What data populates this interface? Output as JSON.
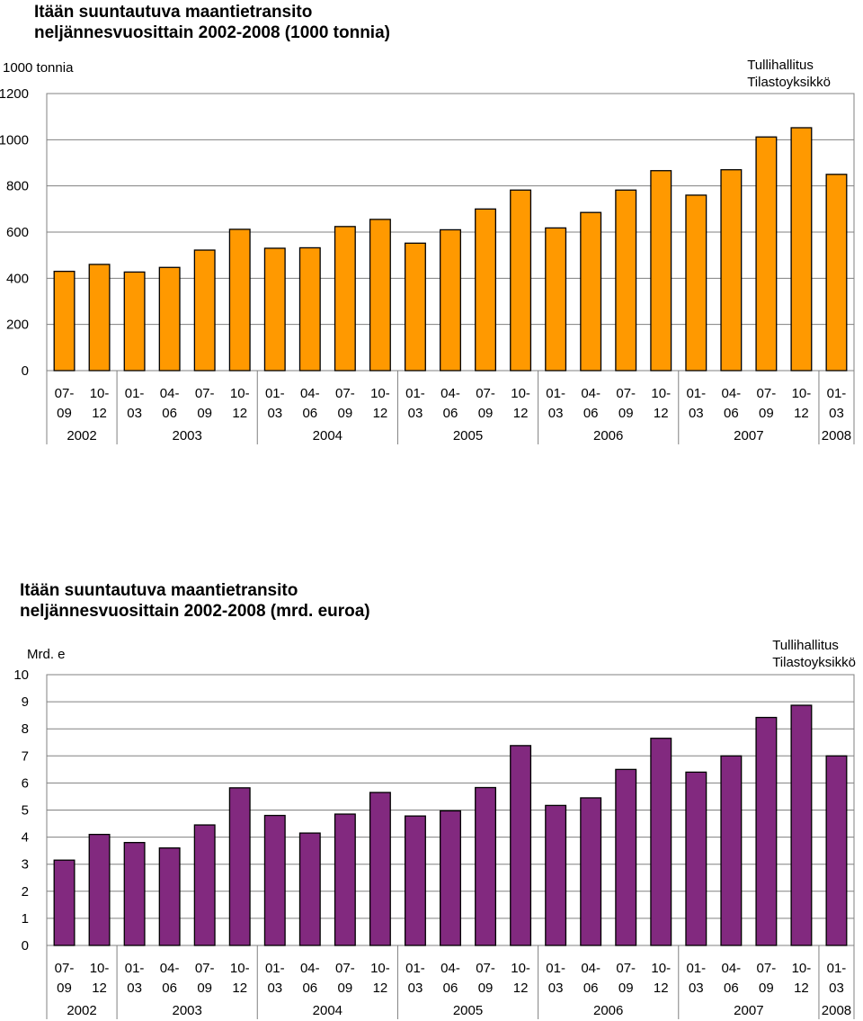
{
  "source": {
    "line1": "Tullihallitus",
    "line2": "Tilastoyksikkö"
  },
  "quarters": [
    "07-09",
    "10-12",
    "01-03",
    "04-06",
    "07-09",
    "10-12",
    "01-03",
    "04-06",
    "07-09",
    "10-12",
    "01-03",
    "04-06",
    "07-09",
    "10-12",
    "01-03",
    "04-06",
    "07-09",
    "10-12",
    "01-03",
    "04-06",
    "07-09",
    "10-12",
    "01-03"
  ],
  "years": [
    {
      "label": "2002",
      "first": 0,
      "last": 1
    },
    {
      "label": "2003",
      "first": 2,
      "last": 5
    },
    {
      "label": "2004",
      "first": 6,
      "last": 9
    },
    {
      "label": "2005",
      "first": 10,
      "last": 13
    },
    {
      "label": "2006",
      "first": 14,
      "last": 17
    },
    {
      "label": "2007",
      "first": 18,
      "last": 21
    },
    {
      "label": "2008",
      "first": 22,
      "last": 22
    }
  ],
  "chart_data": [
    {
      "type": "bar",
      "title_line1": "Itään suuntautuva maantietransito",
      "title_line2": "neljännesvuosittain 2002-2008 (1000 tonnia)",
      "ylabel": "1000 tonnia",
      "ylim": [
        0,
        1200
      ],
      "yticks": [
        "0",
        "200",
        "400",
        "600",
        "800",
        "1000",
        "1200"
      ],
      "values": [
        430,
        460,
        427,
        447,
        522,
        612,
        530,
        532,
        624,
        655,
        552,
        610,
        700,
        782,
        618,
        685,
        782,
        866,
        760,
        870,
        1012,
        1052,
        850
      ],
      "color": "#FF9900"
    },
    {
      "type": "bar",
      "title_line1": "Itään suuntautuva maantietransito",
      "title_line2": "neljännesvuosittain 2002-2008 (mrd. euroa)",
      "ylabel": "Mrd. e",
      "ylim": [
        0,
        10
      ],
      "yticks": [
        "0",
        "1",
        "2",
        "3",
        "4",
        "5",
        "6",
        "7",
        "8",
        "9",
        "10"
      ],
      "values": [
        3.15,
        4.1,
        3.8,
        3.6,
        4.45,
        5.82,
        4.8,
        4.15,
        4.85,
        5.65,
        4.78,
        4.97,
        5.83,
        7.38,
        5.17,
        5.45,
        6.5,
        7.65,
        6.4,
        7.0,
        8.42,
        8.87,
        7.0
      ],
      "color": "#82297F"
    }
  ]
}
